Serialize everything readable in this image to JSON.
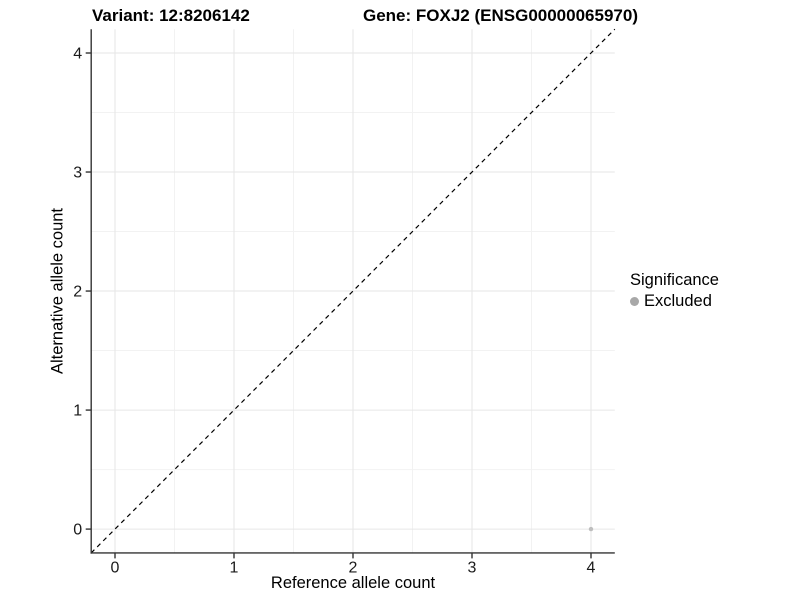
{
  "header": {
    "variant_title": "Variant: 12:8206142",
    "gene_title": "Gene: FOXJ2 (ENSG00000065970)"
  },
  "colors": {
    "grid_major": "#e6e6e6",
    "grid_minor": "#f2f2f2",
    "axis_line": "#333333",
    "tick_text": "#1a1a1a",
    "reference_line": "#000000",
    "background": "#ffffff"
  },
  "chart_data": {
    "type": "scatter",
    "xlabel": "Reference allele count",
    "ylabel": "Alternative allele count",
    "x_ticks": [
      0,
      1,
      2,
      3,
      4
    ],
    "y_ticks": [
      0,
      1,
      2,
      3,
      4
    ],
    "xlim": [
      -0.2,
      4.2
    ],
    "ylim": [
      -0.2,
      4.2
    ],
    "grid": "major+minor",
    "legend_position": "right",
    "reference_line": {
      "type": "identity y=x",
      "style": "dashed",
      "color": "#000000"
    },
    "points": [
      {
        "x": 4,
        "y": 0,
        "significance": "Excluded",
        "color": "#bebebe"
      }
    ],
    "legend": {
      "title": "Significance",
      "items": [
        {
          "label": "Excluded",
          "color": "#a8a8a8"
        }
      ]
    }
  }
}
